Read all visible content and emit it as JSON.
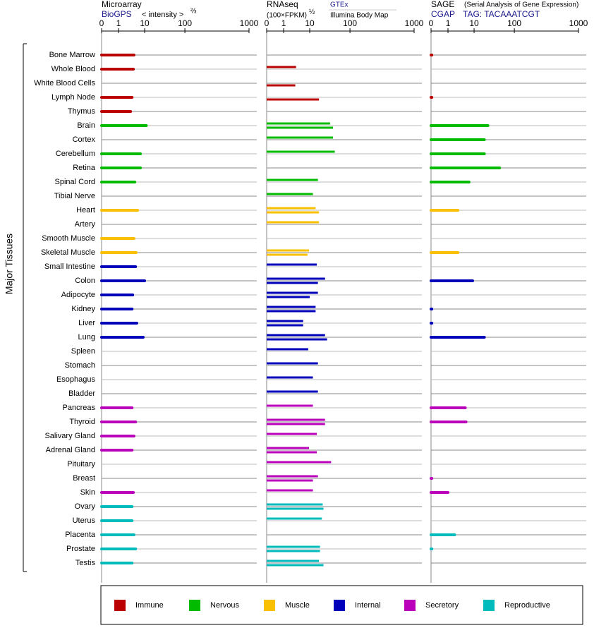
{
  "y_title": "Major Tissues",
  "groups": [
    {
      "name": "Immune",
      "color": "#bb0000"
    },
    {
      "name": "Nervous",
      "color": "#00bb00"
    },
    {
      "name": "Muscle",
      "color": "#f8c000"
    },
    {
      "name": "Internal",
      "color": "#0000bb"
    },
    {
      "name": "Secretory",
      "color": "#bb00bb"
    },
    {
      "name": "Reproductive",
      "color": "#00bbbb"
    }
  ],
  "tissues": [
    "Bone Marrow",
    "Whole Blood",
    "White Blood Cells",
    "Lymph Node",
    "Thymus",
    "Brain",
    "Cortex",
    "Cerebellum",
    "Retina",
    "Spinal Cord",
    "Tibial Nerve",
    "Heart",
    "Artery",
    "Smooth Muscle",
    "Skeletal Muscle",
    "Small Intestine",
    "Colon",
    "Adipocyte",
    "Kidney",
    "Liver",
    "Lung",
    "Spleen",
    "Stomach",
    "Esophagus",
    "Bladder",
    "Pancreas",
    "Thyroid",
    "Salivary Gland",
    "Adrenal Gland",
    "Pituitary",
    "Breast",
    "Skin",
    "Ovary",
    "Uterus",
    "Placenta",
    "Prostate",
    "Testis"
  ],
  "tissue_groups": [
    0,
    0,
    0,
    0,
    0,
    1,
    1,
    1,
    1,
    1,
    1,
    2,
    2,
    2,
    2,
    3,
    3,
    3,
    3,
    3,
    3,
    3,
    3,
    3,
    3,
    4,
    4,
    4,
    4,
    4,
    4,
    4,
    5,
    5,
    5,
    5,
    5
  ],
  "chart_data": [
    {
      "type": "bar",
      "title": "Microarray",
      "source": "BioGPS",
      "axis_label": "< intensity >",
      "axis_exponent": "⅔",
      "xlim": [
        0,
        1000
      ],
      "xticks": [
        0,
        1,
        10,
        100,
        1000
      ],
      "series": [
        {
          "name": "BioGPS",
          "values": [
            3.9,
            3.7,
            null,
            3.3,
            2.9,
            11,
            null,
            6.9,
            6.9,
            4.2,
            null,
            5.4,
            null,
            3.9,
            4.7,
            4.5,
            10,
            3.5,
            3.3,
            5.0,
            8.8,
            null,
            null,
            null,
            null,
            3.3,
            4.5,
            3.9,
            3.3,
            null,
            null,
            3.7,
            3.3,
            3.3,
            3.9,
            4.5,
            3.3
          ]
        }
      ]
    },
    {
      "type": "bar",
      "title": "RNAseq",
      "axis_label": "(100×FPKM)",
      "axis_exponent": "½",
      "xlim": [
        0,
        1000
      ],
      "xticks": [
        0,
        1,
        10,
        100,
        1000
      ],
      "series": [
        {
          "name": "GTEx",
          "values": [
            null,
            3.0,
            null,
            null,
            null,
            32,
            38,
            42,
            null,
            16,
            12,
            14,
            17,
            null,
            9.4,
            15,
            24,
            16,
            14,
            5.6,
            24,
            8.8,
            16,
            12,
            16,
            12,
            24,
            15,
            9.4,
            34,
            16,
            12,
            21,
            20,
            null,
            18,
            17
          ]
        },
        {
          "name": "Illumina Body Map",
          "values": [
            null,
            null,
            2.8,
            17,
            null,
            38,
            null,
            null,
            null,
            null,
            null,
            17,
            null,
            null,
            8.2,
            null,
            16,
            10,
            14,
            5.6,
            27,
            null,
            null,
            null,
            null,
            null,
            24,
            null,
            15,
            null,
            12,
            null,
            22,
            null,
            null,
            18,
            22
          ]
        }
      ]
    },
    {
      "type": "bar",
      "title": "SAGE",
      "subtitle": "(Serial Analysis of Gene Expression)",
      "source": "CGAP",
      "tag": "TAG: TACAAATCGT",
      "xlim": [
        0,
        1000
      ],
      "xticks": [
        0,
        1,
        10,
        100,
        1000
      ],
      "series": [
        {
          "name": "CGAP",
          "values": [
            0.05,
            null,
            null,
            0.05,
            null,
            22,
            18,
            18,
            43,
            6.4,
            null,
            2.4,
            null,
            null,
            2.4,
            null,
            8.8,
            null,
            0.05,
            0.05,
            18,
            null,
            null,
            null,
            null,
            4.6,
            4.9,
            null,
            null,
            null,
            0.05,
            1.0,
            null,
            null,
            1.8,
            0.05,
            null
          ]
        }
      ]
    }
  ]
}
